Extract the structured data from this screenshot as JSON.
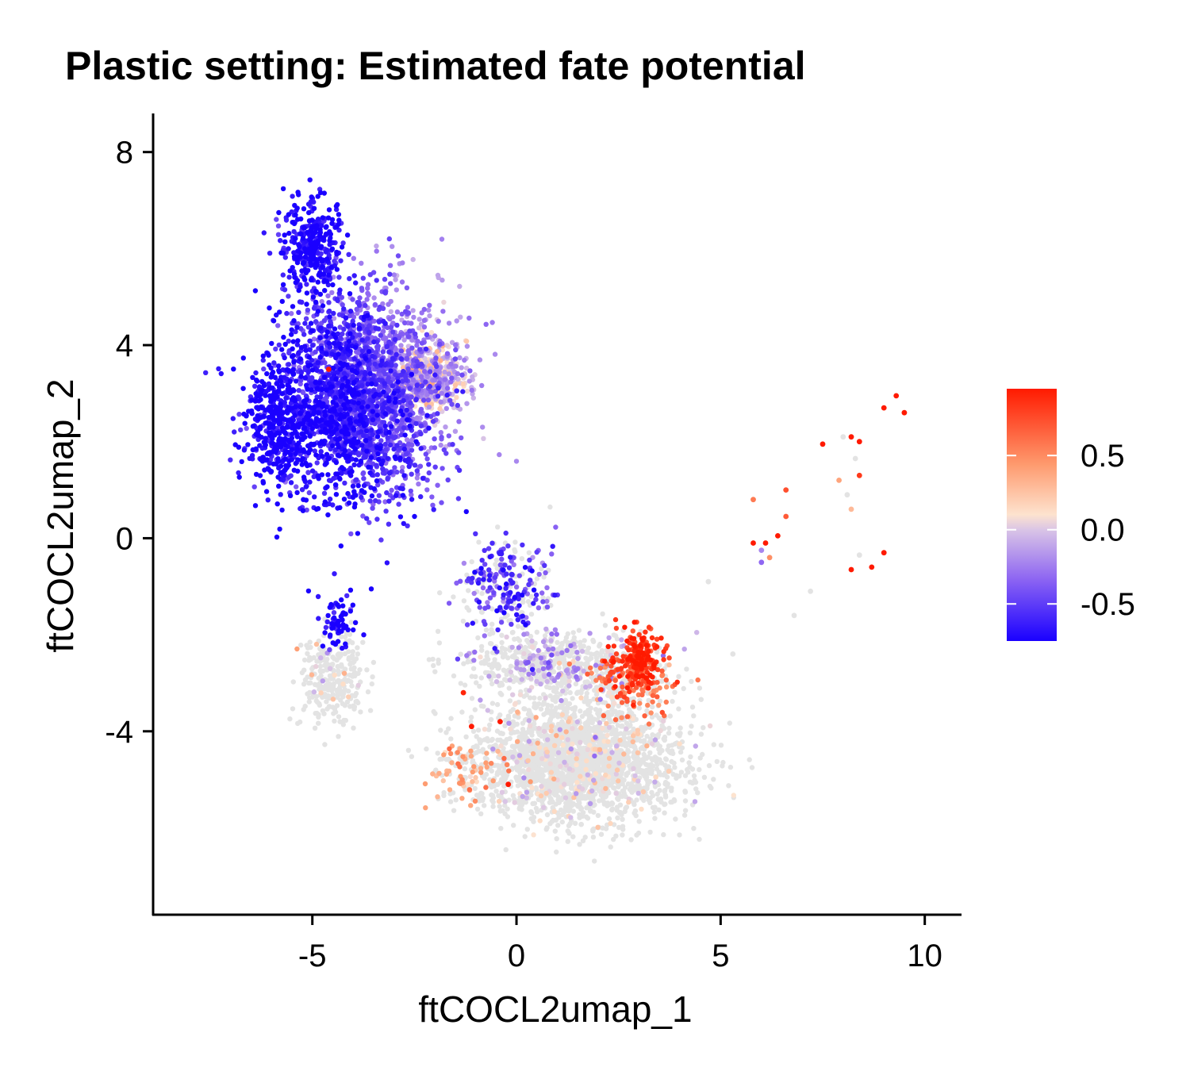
{
  "chart_data": {
    "type": "scatter",
    "title": "Plastic setting: Estimated fate potential",
    "xlabel": "ftCOCL2umap_1",
    "ylabel": "ftCOCL2umap_2",
    "xlim": [
      -8.9,
      10.9
    ],
    "ylim": [
      -7.8,
      8.8
    ],
    "x_ticks": [
      -5,
      0,
      5,
      10
    ],
    "x_tick_labels": [
      "-5",
      "0",
      "5",
      "10"
    ],
    "y_ticks": [
      -4,
      0,
      4,
      8
    ],
    "y_tick_labels": [
      "-4",
      "0",
      "4",
      "8"
    ],
    "grid": false,
    "legend": {
      "placement": "right",
      "title": "",
      "range": [
        -0.75,
        0.95
      ],
      "ticks": [
        0.5,
        0.0,
        -0.5
      ],
      "tick_labels": [
        "0.5",
        "0.0",
        "-0.5"
      ],
      "colors": {
        "low": "#1a00ff",
        "mid": "#fde3cf",
        "high": "#ff1a00",
        "na": "#e3e3e3"
      }
    },
    "clusters": [
      {
        "name": "upper-left-blob",
        "center": [
          -3.8,
          3.0
        ],
        "spread": [
          1.85,
          1.9
        ],
        "count": 2600,
        "value_mean": -0.55,
        "value_gradient": [
          0.09,
          0.05
        ],
        "na_fraction": 0.0
      },
      {
        "name": "upper-left-top",
        "center": [
          -5.0,
          6.0
        ],
        "spread": [
          0.75,
          0.9
        ],
        "count": 350,
        "value_mean": -0.72,
        "value_gradient": [
          0.0,
          0.0
        ],
        "na_fraction": 0.0
      },
      {
        "name": "upper-left-peach",
        "center": [
          -2.2,
          3.3
        ],
        "spread": [
          0.75,
          0.6
        ],
        "count": 500,
        "value_mean": -0.05,
        "value_gradient": [
          0.0,
          0.0
        ],
        "na_fraction": 0.0
      },
      {
        "name": "upper-left-dark",
        "center": [
          -5.8,
          2.3
        ],
        "spread": [
          0.8,
          1.2
        ],
        "count": 400,
        "value_mean": -0.75,
        "value_gradient": [
          0.0,
          0.0
        ],
        "na_fraction": 0.0
      },
      {
        "name": "lower-left-arm",
        "center": [
          -4.5,
          -2.9
        ],
        "spread": [
          0.75,
          0.8
        ],
        "count": 280,
        "value_mean": 0.0,
        "value_gradient": [
          0.0,
          0.0
        ],
        "na_fraction": 0.93
      },
      {
        "name": "left-arm-blue",
        "center": [
          -4.4,
          -1.7
        ],
        "spread": [
          0.35,
          0.6
        ],
        "count": 70,
        "value_mean": -0.75,
        "value_gradient": [
          0.0,
          0.0
        ],
        "na_fraction": 0.0
      },
      {
        "name": "bridge",
        "center": [
          -0.3,
          -1.0
        ],
        "spread": [
          1.0,
          0.9
        ],
        "count": 260,
        "value_mean": -0.55,
        "value_gradient": [
          0.0,
          0.0
        ],
        "na_fraction": 0.35
      },
      {
        "name": "lower-blob",
        "center": [
          1.5,
          -4.6
        ],
        "spread": [
          2.3,
          1.15
        ],
        "count": 2400,
        "value_mean": 0.0,
        "value_gradient": [
          0.0,
          0.0
        ],
        "na_fraction": 0.9
      },
      {
        "name": "lower-blob-top",
        "center": [
          1.0,
          -2.6
        ],
        "spread": [
          1.9,
          0.6
        ],
        "count": 600,
        "value_mean": -0.2,
        "value_gradient": [
          0.0,
          0.0
        ],
        "na_fraction": 0.75
      },
      {
        "name": "hotspot",
        "center": [
          3.0,
          -2.5
        ],
        "spread": [
          0.5,
          0.55
        ],
        "count": 220,
        "value_mean": 0.82,
        "value_gradient": [
          0.0,
          0.0
        ],
        "na_fraction": 0.05
      },
      {
        "name": "hotspot-halo",
        "center": [
          2.8,
          -3.0
        ],
        "spread": [
          0.9,
          0.6
        ],
        "count": 150,
        "value_mean": 0.55,
        "value_gradient": [
          0.0,
          0.0
        ],
        "na_fraction": 0.25
      },
      {
        "name": "lower-left-dots",
        "center": [
          -1.2,
          -4.8
        ],
        "spread": [
          0.7,
          0.6
        ],
        "count": 90,
        "value_mean": 0.35,
        "value_gradient": [
          0.0,
          0.0
        ],
        "na_fraction": 0.4
      }
    ],
    "outlier_points": [
      {
        "x": 9.3,
        "y": 2.95,
        "value": 0.95
      },
      {
        "x": 9.0,
        "y": 2.7,
        "value": 0.95
      },
      {
        "x": 9.5,
        "y": 2.6,
        "value": 0.95
      },
      {
        "x": 8.2,
        "y": 2.1,
        "value": 0.95
      },
      {
        "x": 8.4,
        "y": 2.0,
        "value": 0.95
      },
      {
        "x": 7.5,
        "y": 1.95,
        "value": 0.95
      },
      {
        "x": 8.0,
        "y": 2.1,
        "value": null
      },
      {
        "x": 8.3,
        "y": 1.65,
        "value": null
      },
      {
        "x": 8.4,
        "y": 1.3,
        "value": 0.8
      },
      {
        "x": 7.9,
        "y": 1.2,
        "value": 0.3
      },
      {
        "x": 8.1,
        "y": 0.9,
        "value": null
      },
      {
        "x": 8.2,
        "y": 0.6,
        "value": 0.2
      },
      {
        "x": 6.6,
        "y": 1.0,
        "value": 0.7
      },
      {
        "x": 5.8,
        "y": 0.8,
        "value": 0.5
      },
      {
        "x": 6.6,
        "y": 0.45,
        "value": 0.65
      },
      {
        "x": 6.4,
        "y": 0.05,
        "value": 0.95
      },
      {
        "x": 6.1,
        "y": -0.1,
        "value": 0.95
      },
      {
        "x": 5.8,
        "y": -0.1,
        "value": 0.95
      },
      {
        "x": 6.0,
        "y": -0.25,
        "value": -0.3
      },
      {
        "x": 6.2,
        "y": -0.4,
        "value": 0.4
      },
      {
        "x": 6.0,
        "y": -0.5,
        "value": -0.4
      },
      {
        "x": 9.0,
        "y": -0.3,
        "value": 0.95
      },
      {
        "x": 8.7,
        "y": -0.6,
        "value": 0.95
      },
      {
        "x": 8.2,
        "y": -0.65,
        "value": 0.95
      },
      {
        "x": 8.4,
        "y": -0.35,
        "value": null
      },
      {
        "x": 7.2,
        "y": -1.1,
        "value": null
      },
      {
        "x": 5.3,
        "y": -2.4,
        "value": null
      },
      {
        "x": 4.7,
        "y": -0.9,
        "value": null
      },
      {
        "x": 6.8,
        "y": -1.6,
        "value": null
      },
      {
        "x": -4.6,
        "y": 3.5,
        "value": 0.95
      },
      {
        "x": -0.2,
        "y": -5.1,
        "value": 0.95
      },
      {
        "x": -1.1,
        "y": -3.9,
        "value": 0.95
      },
      {
        "x": -1.3,
        "y": -3.2,
        "value": 0.9
      },
      {
        "x": -0.4,
        "y": -3.8,
        "value": 0.95
      }
    ]
  }
}
